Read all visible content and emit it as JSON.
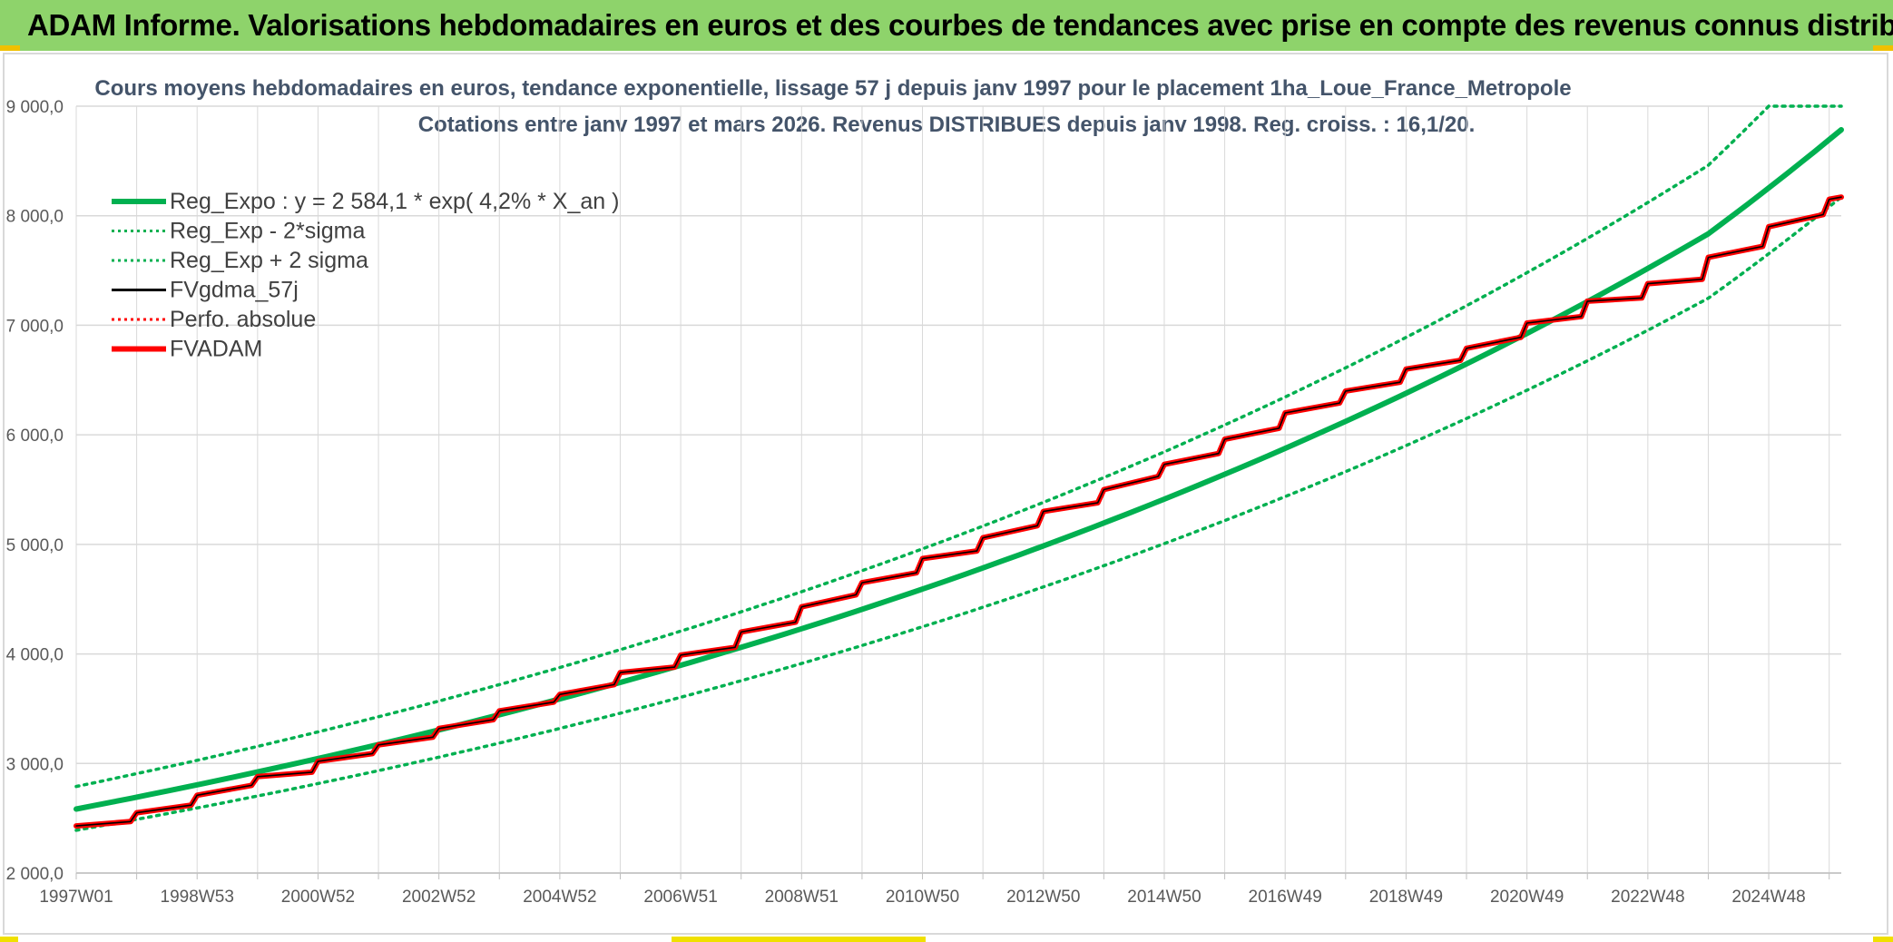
{
  "banner": {
    "title": "ADAM Informe. Valorisations hebdomadaires en euros et des courbes de tendances avec prise en compte des revenus connus distribués"
  },
  "colors": {
    "banner_bg": "#8ed36b",
    "trend_green": "#00b050",
    "fv_red": "#ff0000",
    "fv_black": "#000000",
    "grid": "#d9d9d9",
    "title_text": "#44546a"
  },
  "chart_data": {
    "type": "line",
    "title": "Cours moyens hebdomadaires en euros, tendance exponentielle, lissage 57 j depuis janv 1997 pour le placement 1ha_Loue_France_Metropole",
    "subtitle": "Cotations entre janv 1997 et mars 2026. Revenus DISTRIBUES depuis janv 1998. Reg. croiss. : 16,1/20.",
    "x_tick_labels": [
      "1997W01",
      "1998W53",
      "2000W52",
      "2002W52",
      "2004W52",
      "2006W51",
      "2008W51",
      "2010W50",
      "2012W50",
      "2014W50",
      "2016W49",
      "2018W49",
      "2020W49",
      "2022W48",
      "2024W48"
    ],
    "x_range_years": [
      1997.0,
      2026.2
    ],
    "ylim": [
      2000,
      9000
    ],
    "y_ticks": [
      2000,
      3000,
      4000,
      5000,
      6000,
      7000,
      8000,
      9000
    ],
    "y_tick_labels": [
      "2 000,0",
      "3 000,0",
      "4 000,0",
      "5 000,0",
      "6 000,0",
      "7 000,0",
      "8 000,0",
      "9 000,0"
    ],
    "grid": true,
    "legend_position": "top-left",
    "legend": [
      {
        "key": "reg_expo",
        "label": "Reg_Expo : y = 2 584,1 * exp( 4,2% *  X_an )",
        "color": "#00b050",
        "style": "solid-thick"
      },
      {
        "key": "reg_lo",
        "label": "Reg_Exp - 2*sigma",
        "color": "#00b050",
        "style": "dotted"
      },
      {
        "key": "reg_hi",
        "label": "Reg_Exp + 2 sigma",
        "color": "#00b050",
        "style": "dotted"
      },
      {
        "key": "fvgdma",
        "label": "FVgdma_57j",
        "color": "#000000",
        "style": "solid"
      },
      {
        "key": "perfo",
        "label": "Perfo. absolue",
        "color": "#ff0000",
        "style": "dotted"
      },
      {
        "key": "fvadam",
        "label": "FVADAM",
        "color": "#ff0000",
        "style": "solid-thick"
      }
    ],
    "series": [
      {
        "name": "Reg_Expo : y = 2 584,1 * exp( 4,2% *  X_an )",
        "x": [
          1997.0,
          2000.0,
          2003.0,
          2006.0,
          2009.0,
          2012.0,
          2015.0,
          2018.0,
          2021.0,
          2024.0,
          2026.2
        ],
        "values": [
          2584,
          2923,
          3306,
          3740,
          4230,
          4785,
          5413,
          6123,
          6926,
          7835,
          8785
        ]
      },
      {
        "name": "Reg_Exp - 2*sigma",
        "x": [
          1997.0,
          2000.0,
          2003.0,
          2006.0,
          2009.0,
          2012.0,
          2015.0,
          2018.0,
          2021.0,
          2024.0,
          2026.2
        ],
        "values": [
          2390,
          2703,
          3058,
          3459,
          3913,
          4426,
          5007,
          5664,
          6407,
          7247,
          8170
        ]
      },
      {
        "name": "Reg_Exp + 2 sigma",
        "x": [
          1997.0,
          2000.0,
          2003.0,
          2006.0,
          2009.0,
          2012.0,
          2015.0,
          2018.0,
          2021.0,
          2024.0,
          2025.0,
          2026.2
        ],
        "values": [
          2790,
          3156,
          3570,
          4039,
          4568,
          5167,
          5845,
          6612,
          7480,
          8461,
          9000,
          9000
        ]
      },
      {
        "name": "FVADAM",
        "x": [
          1997.0,
          1997.9,
          1998.0,
          1998.9,
          1999.0,
          1999.9,
          2000.0,
          2000.9,
          2001.0,
          2001.9,
          2002.0,
          2002.9,
          2003.0,
          2003.9,
          2004.0,
          2004.9,
          2005.0,
          2005.9,
          2006.0,
          2006.9,
          2007.0,
          2007.9,
          2008.0,
          2008.9,
          2009.0,
          2009.9,
          2010.0,
          2010.9,
          2011.0,
          2011.9,
          2012.0,
          2012.9,
          2013.0,
          2013.9,
          2014.0,
          2014.9,
          2015.0,
          2015.9,
          2016.0,
          2016.9,
          2017.0,
          2017.9,
          2018.0,
          2018.9,
          2019.0,
          2019.9,
          2020.0,
          2020.9,
          2021.0,
          2021.9,
          2022.0,
          2022.9,
          2023.0,
          2023.9,
          2024.0,
          2024.9,
          2025.0,
          2025.9,
          2026.0,
          2026.2
        ],
        "values": [
          2430,
          2470,
          2550,
          2620,
          2710,
          2800,
          2880,
          2920,
          3020,
          3090,
          3170,
          3240,
          3320,
          3400,
          3480,
          3560,
          3630,
          3720,
          3830,
          3880,
          3990,
          4060,
          4200,
          4290,
          4430,
          4540,
          4650,
          4740,
          4870,
          4940,
          5060,
          5170,
          5300,
          5380,
          5500,
          5620,
          5730,
          5830,
          5960,
          6060,
          6200,
          6290,
          6400,
          6480,
          6600,
          6680,
          6790,
          6890,
          7020,
          7080,
          7220,
          7250,
          7380,
          7420,
          7620,
          7720,
          7900,
          8010,
          8150,
          8170
        ]
      },
      {
        "name": "FVgdma_57j",
        "x": [
          1997.0,
          1997.9,
          1998.0,
          1998.9,
          1999.0,
          1999.9,
          2000.0,
          2000.9,
          2001.0,
          2001.9,
          2002.0,
          2002.9,
          2003.0,
          2003.9,
          2004.0,
          2004.9,
          2005.0,
          2005.9,
          2006.0,
          2006.9,
          2007.0,
          2007.9,
          2008.0,
          2008.9,
          2009.0,
          2009.9,
          2010.0,
          2010.9,
          2011.0,
          2011.9,
          2012.0,
          2012.9,
          2013.0,
          2013.9,
          2014.0,
          2014.9,
          2015.0,
          2015.9,
          2016.0,
          2016.9,
          2017.0,
          2017.9,
          2018.0,
          2018.9,
          2019.0,
          2019.9,
          2020.0,
          2020.9,
          2021.0,
          2021.9,
          2022.0,
          2022.9,
          2023.0,
          2023.9,
          2024.0,
          2024.9,
          2025.0,
          2025.9,
          2026.0,
          2026.2
        ],
        "values": [
          2430,
          2470,
          2550,
          2620,
          2710,
          2800,
          2880,
          2920,
          3020,
          3090,
          3170,
          3240,
          3320,
          3400,
          3480,
          3560,
          3630,
          3720,
          3830,
          3880,
          3990,
          4060,
          4200,
          4290,
          4430,
          4540,
          4650,
          4740,
          4870,
          4940,
          5060,
          5170,
          5300,
          5380,
          5500,
          5620,
          5730,
          5830,
          5960,
          6060,
          6200,
          6290,
          6400,
          6480,
          6600,
          6680,
          6790,
          6890,
          7020,
          7080,
          7220,
          7250,
          7380,
          7420,
          7620,
          7720,
          7900,
          8010,
          8150,
          8170
        ]
      }
    ]
  }
}
